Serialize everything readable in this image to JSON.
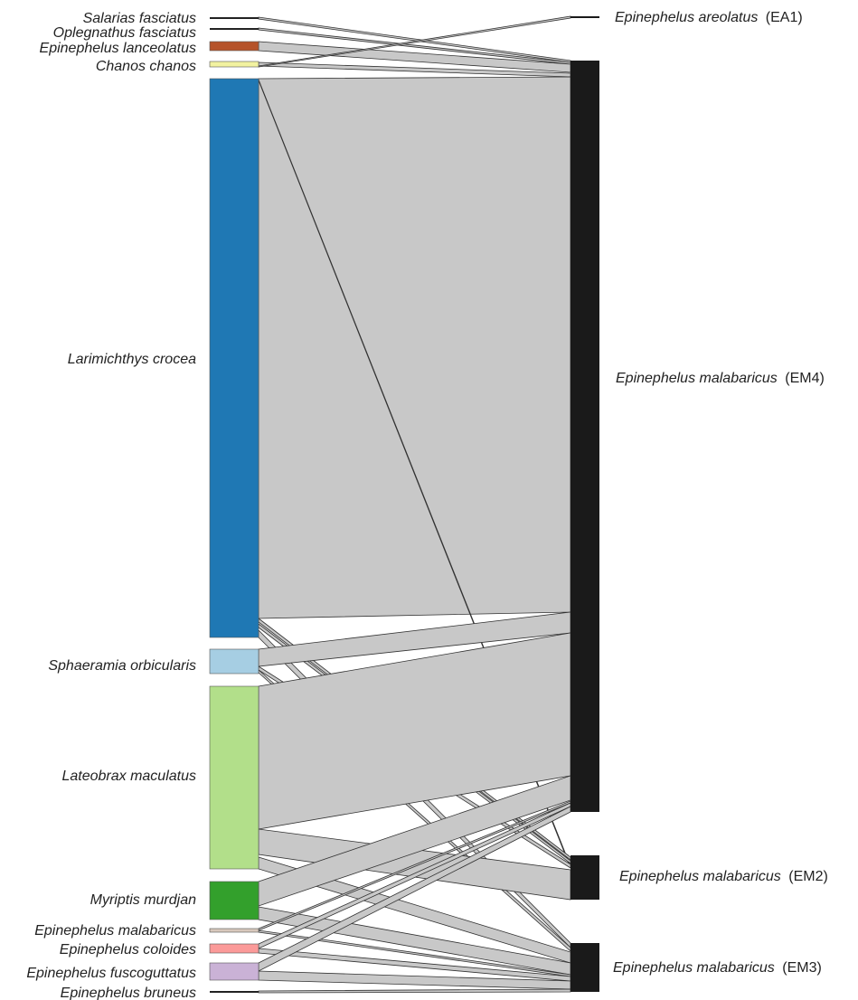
{
  "diagram": {
    "sources": [
      {
        "id": "s-salarias",
        "name": "Salarias fasciatus",
        "color": "#222222"
      },
      {
        "id": "s-oplegnathus",
        "name": "Oplegnathus fasciatus",
        "color": "#222222"
      },
      {
        "id": "s-lanceolatus",
        "name": "Epinephelus lanceolatus",
        "color": "#b5532a"
      },
      {
        "id": "s-chanos",
        "name": "Chanos chanos",
        "color": "#f2f2a0"
      },
      {
        "id": "s-larimichthys",
        "name": "Larimichthys crocea",
        "color": "#1f78b4"
      },
      {
        "id": "s-sphaeramia",
        "name": "Sphaeramia orbicularis",
        "color": "#a6cee3"
      },
      {
        "id": "s-lateobrax",
        "name": "Lateobrax maculatus",
        "color": "#b2df8a"
      },
      {
        "id": "s-myriptis",
        "name": "Myriptis murdjan",
        "color": "#33a02c"
      },
      {
        "id": "s-malabaricus",
        "name": "Epinephelus malabaricus",
        "color": "#d8c8bc"
      },
      {
        "id": "s-coloides",
        "name": "Epinephelus coloides",
        "color": "#fb9a99"
      },
      {
        "id": "s-fuscoguttatus",
        "name": "Epinephelus fuscoguttatus",
        "color": "#cab2d6"
      },
      {
        "id": "s-bruneus",
        "name": "Epinephelus bruneus",
        "color": "#222222"
      }
    ],
    "targets": [
      {
        "id": "t-ea1",
        "species": "Epinephelus areolatus",
        "code": "(EA1)",
        "color": "#1a1a1a"
      },
      {
        "id": "t-em4",
        "species": "Epinephelus malabaricus",
        "code": "(EM4)",
        "color": "#1a1a1a"
      },
      {
        "id": "t-em2",
        "species": "Epinephelus malabaricus",
        "code": "(EM2)",
        "color": "#1a1a1a"
      },
      {
        "id": "t-em3",
        "species": "Epinephelus malabaricus",
        "code": "(EM3)",
        "color": "#1a1a1a"
      }
    ],
    "link_color": "#c8c8c8",
    "link_stroke": "#333333"
  }
}
